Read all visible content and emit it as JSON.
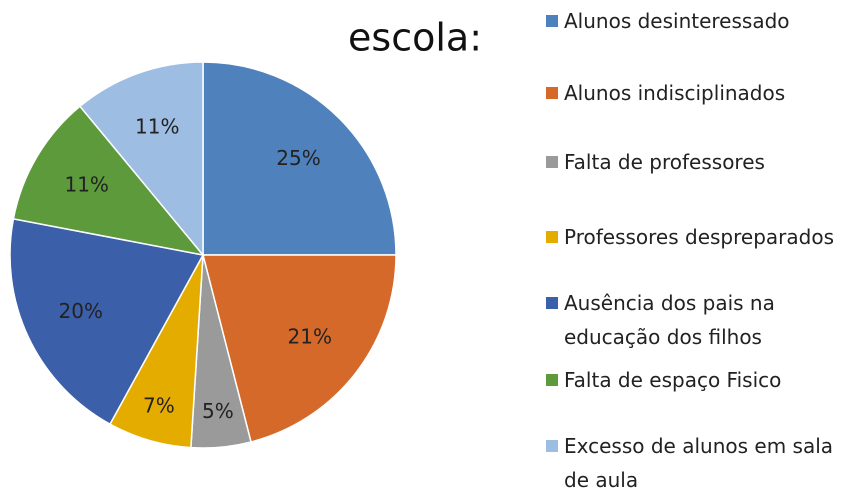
{
  "chart_data": {
    "type": "pie",
    "title": "escola:",
    "categories": [
      "Alunos desinteressado",
      "Alunos indisciplinados",
      "Falta de professores",
      "Professores despreparados",
      "Ausência dos pais na educação dos filhos",
      "Falta de espaço Fisico",
      "Excesso de alunos em sala de aula"
    ],
    "values": [
      25,
      21,
      5,
      7,
      20,
      11,
      11
    ],
    "value_labels": [
      "25%",
      "21%",
      "5%",
      "7%",
      "20%",
      "11%",
      "11%"
    ],
    "colors": [
      "#4f81bd",
      "#d4692a",
      "#9a9a9a",
      "#e5ac00",
      "#3b5fa9",
      "#5c9a3c",
      "#9dbde3"
    ],
    "legend": "right"
  }
}
